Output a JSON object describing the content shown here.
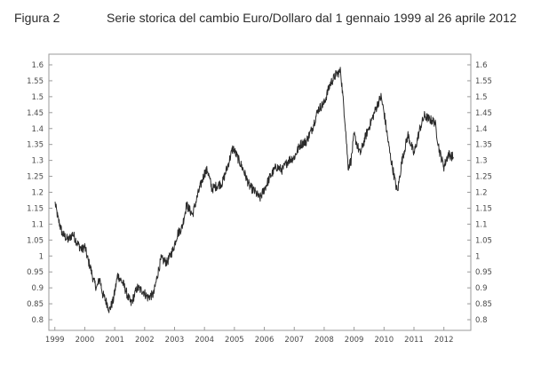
{
  "caption": {
    "label": "Figura 2",
    "title": "Serie storica del cambio Euro/Dollaro dal 1 gennaio 1999 al 26 aprile 2012"
  },
  "colors": {
    "line": "#2a2a2a",
    "frame": "#9a9a9a",
    "grid": "#e2e2e2",
    "text": "#2b2b2b"
  },
  "chart_data": {
    "type": "line",
    "title": "Serie storica del cambio Euro/Dollaro dal 1 gennaio 1999 al 26 aprile 2012",
    "xlabel": "",
    "ylabel": "",
    "xlim": [
      1998.8,
      2012.9
    ],
    "ylim": [
      0.8,
      1.6
    ],
    "x_ticks": [
      "1999",
      "2000",
      "2001",
      "2002",
      "2003",
      "2004",
      "2005",
      "2006",
      "2007",
      "2008",
      "2009",
      "2010",
      "2011",
      "2012"
    ],
    "y_ticks": [
      "0.8",
      "0.85",
      "0.9",
      "0.95",
      "1",
      "1.05",
      "1.1",
      "1.15",
      "1.2",
      "1.25",
      "1.3",
      "1.35",
      "1.4",
      "1.45",
      "1.5",
      "1.55",
      "1.6"
    ],
    "grid": false,
    "legend": "none",
    "series": [
      {
        "x": [
          1999.0,
          1999.1,
          1999.25,
          1999.45,
          1999.6,
          1999.75,
          1999.9,
          2000.0,
          2000.1,
          2000.2,
          2000.3,
          2000.4,
          2000.5,
          2000.6,
          2000.75,
          2000.82,
          2000.95,
          2001.1,
          2001.3,
          2001.45,
          2001.55,
          2001.75,
          2001.95,
          2002.1,
          2002.3,
          2002.45,
          2002.55,
          2002.75,
          2002.95,
          2003.1,
          2003.25,
          2003.4,
          2003.6,
          2003.8,
          2004.0,
          2004.1,
          2004.25,
          2004.4,
          2004.6,
          2004.8,
          2004.95,
          2005.1,
          2005.3,
          2005.5,
          2005.7,
          2005.85,
          2006.0,
          2006.2,
          2006.4,
          2006.6,
          2006.8,
          2007.0,
          2007.2,
          2007.4,
          2007.6,
          2007.8,
          2008.0,
          2008.2,
          2008.4,
          2008.55,
          2008.7,
          2008.8,
          2008.9,
          2009.0,
          2009.2,
          2009.4,
          2009.6,
          2009.8,
          2009.9,
          2010.0,
          2010.2,
          2010.4,
          2010.45,
          2010.6,
          2010.8,
          2011.0,
          2011.2,
          2011.35,
          2011.5,
          2011.7,
          2011.85,
          2012.0,
          2012.15,
          2012.32
        ],
        "y": [
          1.17,
          1.12,
          1.07,
          1.05,
          1.07,
          1.04,
          1.02,
          1.03,
          0.99,
          0.96,
          0.92,
          0.9,
          0.93,
          0.88,
          0.85,
          0.83,
          0.86,
          0.94,
          0.91,
          0.87,
          0.85,
          0.9,
          0.89,
          0.87,
          0.88,
          0.95,
          0.99,
          0.98,
          1.02,
          1.07,
          1.09,
          1.16,
          1.13,
          1.2,
          1.26,
          1.27,
          1.21,
          1.22,
          1.23,
          1.29,
          1.34,
          1.31,
          1.27,
          1.22,
          1.2,
          1.18,
          1.21,
          1.25,
          1.28,
          1.27,
          1.3,
          1.31,
          1.35,
          1.36,
          1.4,
          1.46,
          1.48,
          1.54,
          1.57,
          1.58,
          1.42,
          1.28,
          1.3,
          1.38,
          1.32,
          1.38,
          1.43,
          1.48,
          1.5,
          1.45,
          1.32,
          1.22,
          1.2,
          1.3,
          1.38,
          1.32,
          1.4,
          1.44,
          1.43,
          1.42,
          1.33,
          1.28,
          1.32,
          1.31
        ]
      }
    ]
  }
}
